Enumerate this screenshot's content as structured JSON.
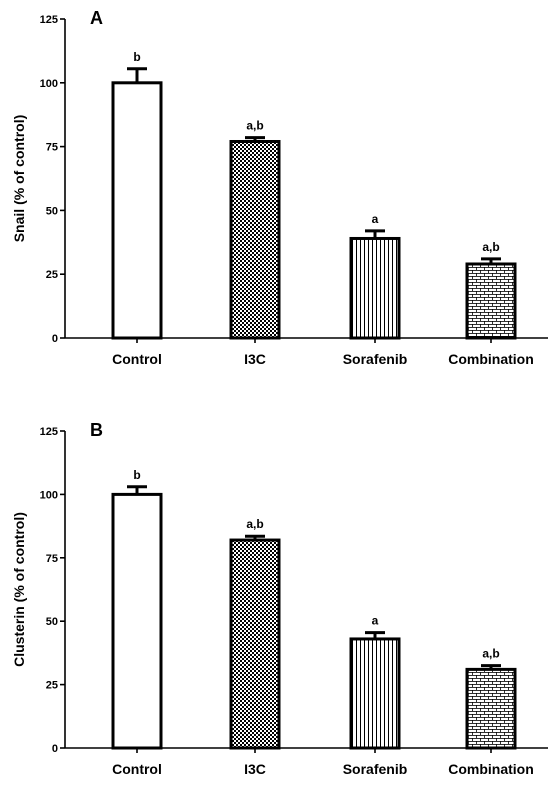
{
  "chart_data": [
    {
      "type": "bar",
      "panel_label": "A",
      "ylabel": "Snail  (% of control)",
      "categories": [
        "Control",
        "I3C",
        "Sorafenib",
        "Combination"
      ],
      "values": [
        100,
        77,
        39,
        29
      ],
      "errors": [
        5.5,
        1.5,
        3,
        2
      ],
      "significance": [
        "b",
        "a,b",
        "a",
        "a,b"
      ],
      "patterns": [
        "solid-white",
        "checkerboard",
        "vertical-lines",
        "brick"
      ],
      "ylim": [
        0,
        125
      ],
      "yticks": [
        0,
        25,
        50,
        75,
        100,
        125
      ],
      "ytick_labels": [
        "0",
        "25",
        "50",
        "75",
        "100",
        "125"
      ]
    },
    {
      "type": "bar",
      "panel_label": "B",
      "ylabel": "Clusterin (% of control)",
      "categories": [
        "Control",
        "I3C",
        "Sorafenib",
        "Combination"
      ],
      "values": [
        100,
        82,
        43,
        31
      ],
      "errors": [
        3,
        1.5,
        2.5,
        1.5
      ],
      "significance": [
        "b",
        "a,b",
        "a",
        "a,b"
      ],
      "patterns": [
        "solid-white",
        "checkerboard",
        "vertical-lines",
        "brick"
      ],
      "ylim": [
        0,
        125
      ],
      "yticks": [
        0,
        25,
        50,
        75,
        100,
        125
      ],
      "ytick_labels": [
        "0",
        "25",
        "50",
        "75",
        "100",
        "125"
      ]
    }
  ]
}
